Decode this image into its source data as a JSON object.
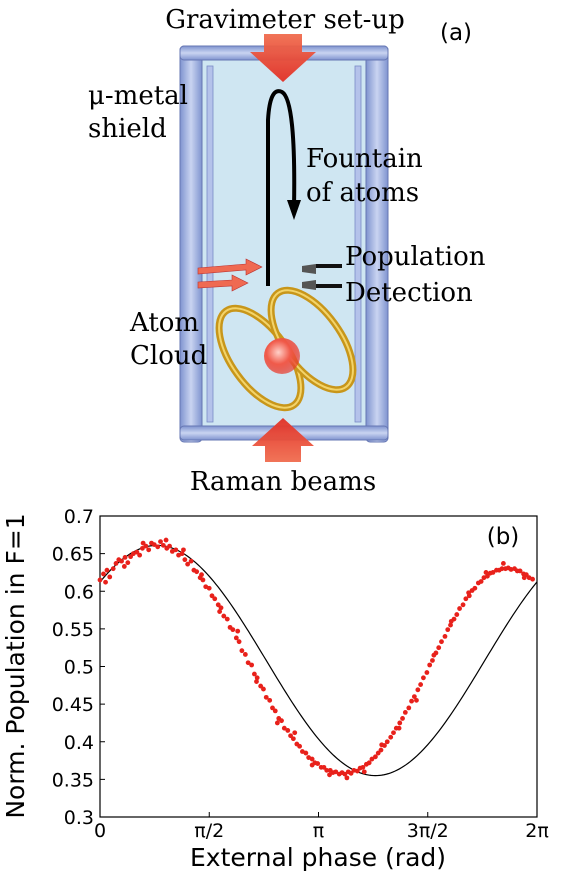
{
  "panel_a": {
    "tag": "(a)",
    "title": "Gravimeter set-up",
    "shield_label_line1": "μ-metal",
    "shield_label_line2": "shield",
    "fountain_label_line1": "Fountain",
    "fountain_label_line2": "of atoms",
    "detection_label_line1": "Population",
    "detection_label_line2": "Detection",
    "cloud_label_line1": "Atom",
    "cloud_label_line2": "Cloud",
    "beams_label": "Raman beams"
  },
  "panel_b": {
    "tag": "(b)"
  },
  "colors": {
    "chamber": "#cfe6f2",
    "shield_bar": "#8fa3d8",
    "beam": "#e8443a",
    "coil": "#d4a017",
    "data_points": "#e8211b",
    "fit_line": "#000000"
  },
  "chart_data": {
    "type": "scatter",
    "xlabel": "External phase (rad)",
    "ylabel": "Norm. Population in F=1",
    "xlim": [
      0,
      6.2832
    ],
    "ylim": [
      0.3,
      0.7
    ],
    "x_ticks": [
      {
        "value": 0,
        "label": "0"
      },
      {
        "value": 1.5708,
        "label": "π/2"
      },
      {
        "value": 3.1416,
        "label": "π"
      },
      {
        "value": 4.7124,
        "label": "3π/2"
      },
      {
        "value": 6.2832,
        "label": "2π"
      }
    ],
    "y_ticks": [
      {
        "value": 0.3,
        "label": "0.3"
      },
      {
        "value": 0.35,
        "label": "0.35"
      },
      {
        "value": 0.4,
        "label": "0.4"
      },
      {
        "value": 0.45,
        "label": "0.45"
      },
      {
        "value": 0.5,
        "label": "0.5"
      },
      {
        "value": 0.55,
        "label": "0.55"
      },
      {
        "value": 0.6,
        "label": "0.6"
      },
      {
        "value": 0.65,
        "label": "0.65"
      },
      {
        "value": 0.7,
        "label": "0.7"
      }
    ],
    "grid": false,
    "fit": {
      "type": "sinusoid",
      "offset": 0.508,
      "amplitude": 0.153,
      "peak_phase": 0.82
    },
    "series": [
      {
        "points": [
          [
            0.0,
            0.615
          ],
          [
            0.05,
            0.623
          ],
          [
            0.1,
            0.628
          ],
          [
            0.14,
            0.619
          ],
          [
            0.19,
            0.63
          ],
          [
            0.23,
            0.637
          ],
          [
            0.27,
            0.642
          ],
          [
            0.31,
            0.64
          ],
          [
            0.36,
            0.645
          ],
          [
            0.4,
            0.638
          ],
          [
            0.44,
            0.646
          ],
          [
            0.48,
            0.65
          ],
          [
            0.53,
            0.652
          ],
          [
            0.57,
            0.648
          ],
          [
            0.61,
            0.657
          ],
          [
            0.66,
            0.66
          ],
          [
            0.7,
            0.655
          ],
          [
            0.74,
            0.664
          ],
          [
            0.78,
            0.662
          ],
          [
            0.83,
            0.659
          ],
          [
            0.87,
            0.666
          ],
          [
            0.91,
            0.661
          ],
          [
            0.96,
            0.657
          ],
          [
            1.0,
            0.66
          ],
          [
            1.04,
            0.653
          ],
          [
            1.09,
            0.655
          ],
          [
            1.13,
            0.648
          ],
          [
            1.18,
            0.65
          ],
          [
            1.22,
            0.642
          ],
          [
            1.26,
            0.636
          ],
          [
            1.31,
            0.64
          ],
          [
            1.35,
            0.628
          ],
          [
            1.39,
            0.626
          ],
          [
            1.44,
            0.618
          ],
          [
            1.48,
            0.615
          ],
          [
            1.52,
            0.606
          ],
          [
            1.57,
            0.604
          ],
          [
            1.61,
            0.594
          ],
          [
            1.65,
            0.59
          ],
          [
            1.7,
            0.582
          ],
          [
            1.74,
            0.578
          ],
          [
            1.78,
            0.567
          ],
          [
            1.83,
            0.563
          ],
          [
            1.87,
            0.552
          ],
          [
            1.91,
            0.549
          ],
          [
            1.96,
            0.538
          ],
          [
            2.0,
            0.533
          ],
          [
            2.04,
            0.521
          ],
          [
            2.09,
            0.516
          ],
          [
            2.13,
            0.505
          ],
          [
            2.18,
            0.502
          ],
          [
            2.22,
            0.49
          ],
          [
            2.26,
            0.485
          ],
          [
            2.31,
            0.474
          ],
          [
            2.35,
            0.47
          ],
          [
            2.39,
            0.459
          ],
          [
            2.44,
            0.455
          ],
          [
            2.48,
            0.445
          ],
          [
            2.52,
            0.441
          ],
          [
            2.57,
            0.431
          ],
          [
            2.61,
            0.428
          ],
          [
            2.65,
            0.418
          ],
          [
            2.7,
            0.415
          ],
          [
            2.74,
            0.408
          ],
          [
            2.78,
            0.404
          ],
          [
            2.83,
            0.397
          ],
          [
            2.87,
            0.394
          ],
          [
            2.91,
            0.387
          ],
          [
            2.96,
            0.385
          ],
          [
            3.0,
            0.379
          ],
          [
            3.05,
            0.377
          ],
          [
            3.09,
            0.372
          ],
          [
            3.13,
            0.371
          ],
          [
            3.18,
            0.366
          ],
          [
            3.22,
            0.366
          ],
          [
            3.26,
            0.362
          ],
          [
            3.31,
            0.362
          ],
          [
            3.35,
            0.359
          ],
          [
            3.39,
            0.36
          ],
          [
            3.44,
            0.357
          ],
          [
            3.48,
            0.359
          ],
          [
            3.52,
            0.357
          ],
          [
            3.57,
            0.36
          ],
          [
            3.61,
            0.358
          ],
          [
            3.65,
            0.362
          ],
          [
            3.7,
            0.361
          ],
          [
            3.74,
            0.365
          ],
          [
            3.78,
            0.366
          ],
          [
            3.83,
            0.37
          ],
          [
            3.87,
            0.372
          ],
          [
            3.91,
            0.377
          ],
          [
            3.96,
            0.38
          ],
          [
            4.0,
            0.385
          ],
          [
            4.04,
            0.389
          ],
          [
            4.09,
            0.395
          ],
          [
            4.13,
            0.4
          ],
          [
            4.18,
            0.406
          ],
          [
            4.22,
            0.412
          ],
          [
            4.26,
            0.418
          ],
          [
            4.31,
            0.425
          ],
          [
            4.35,
            0.431
          ],
          [
            4.39,
            0.439
          ],
          [
            4.44,
            0.445
          ],
          [
            4.48,
            0.454
          ],
          [
            4.52,
            0.46
          ],
          [
            4.57,
            0.469
          ],
          [
            4.61,
            0.476
          ],
          [
            4.65,
            0.485
          ],
          [
            4.7,
            0.492
          ],
          [
            4.74,
            0.502
          ],
          [
            4.78,
            0.508
          ],
          [
            4.83,
            0.518
          ],
          [
            4.87,
            0.525
          ],
          [
            4.91,
            0.533
          ],
          [
            4.96,
            0.54
          ],
          [
            5.0,
            0.549
          ],
          [
            5.04,
            0.555
          ],
          [
            5.09,
            0.563
          ],
          [
            5.13,
            0.569
          ],
          [
            5.17,
            0.577
          ],
          [
            5.22,
            0.582
          ],
          [
            5.26,
            0.59
          ],
          [
            5.31,
            0.594
          ],
          [
            5.35,
            0.601
          ],
          [
            5.39,
            0.604
          ],
          [
            5.44,
            0.611
          ],
          [
            5.48,
            0.613
          ],
          [
            5.52,
            0.618
          ],
          [
            5.57,
            0.62
          ],
          [
            5.61,
            0.624
          ],
          [
            5.65,
            0.625
          ],
          [
            5.7,
            0.628
          ],
          [
            5.74,
            0.628
          ],
          [
            5.78,
            0.63
          ],
          [
            5.83,
            0.63
          ],
          [
            5.87,
            0.631
          ],
          [
            5.91,
            0.629
          ],
          [
            5.96,
            0.63
          ],
          [
            6.0,
            0.627
          ],
          [
            6.04,
            0.627
          ],
          [
            6.09,
            0.623
          ],
          [
            6.13,
            0.622
          ],
          [
            6.17,
            0.618
          ],
          [
            6.22,
            0.616
          ],
          [
            0.08,
            0.612
          ],
          [
            0.35,
            0.633
          ],
          [
            0.62,
            0.664
          ],
          [
            0.95,
            0.668
          ],
          [
            1.2,
            0.655
          ],
          [
            1.46,
            0.622
          ],
          [
            1.72,
            0.573
          ],
          [
            1.98,
            0.547
          ],
          [
            2.25,
            0.48
          ],
          [
            2.55,
            0.425
          ],
          [
            2.8,
            0.412
          ],
          [
            3.05,
            0.369
          ],
          [
            3.3,
            0.356
          ],
          [
            3.55,
            0.352
          ],
          [
            3.8,
            0.36
          ],
          [
            4.05,
            0.396
          ],
          [
            4.3,
            0.418
          ],
          [
            4.55,
            0.455
          ],
          [
            4.8,
            0.515
          ],
          [
            5.05,
            0.56
          ],
          [
            5.3,
            0.598
          ],
          [
            5.55,
            0.625
          ],
          [
            5.8,
            0.637
          ],
          [
            6.1,
            0.618
          ]
        ]
      }
    ]
  }
}
